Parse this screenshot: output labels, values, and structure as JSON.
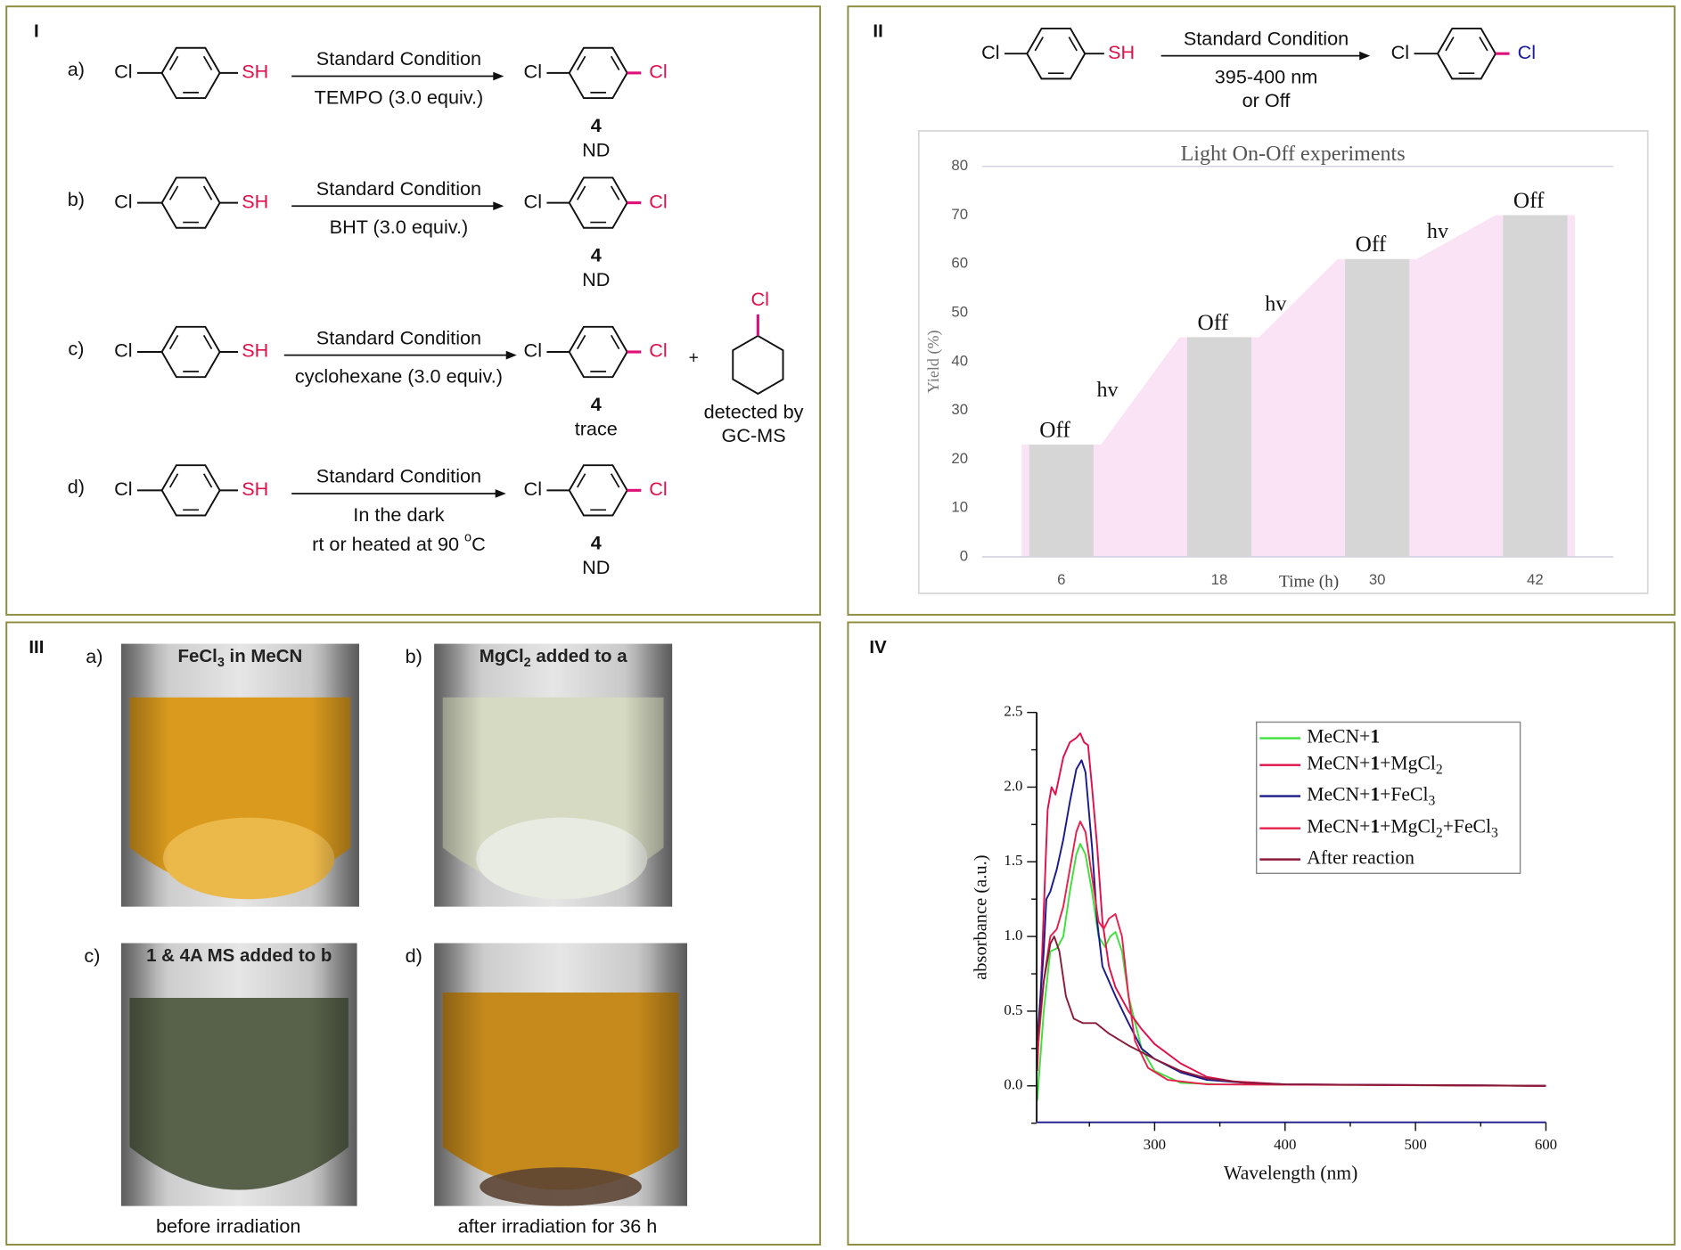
{
  "colors": {
    "panel_border": "#8c8c3c",
    "thiol_red": "#e0104a",
    "product_bond": "#e0107a",
    "product_cl_II": "#1a1a9c",
    "bar_grey": "#d6d6d6",
    "light_pink": "#fbe3f6"
  },
  "panel_I": {
    "label": "I",
    "rows": [
      {
        "letter": "a)",
        "reactant_left": "Cl",
        "reactant_right": "SH",
        "above": "Standard Condition",
        "below": "TEMPO (3.0 equiv.)",
        "product_left": "Cl",
        "product_right": "Cl",
        "compound": "4",
        "result": "ND"
      },
      {
        "letter": "b)",
        "reactant_left": "Cl",
        "reactant_right": "SH",
        "above": "Standard Condition",
        "below": "BHT (3.0 equiv.)",
        "product_left": "Cl",
        "product_right": "Cl",
        "compound": "4",
        "result": "ND"
      },
      {
        "letter": "c)",
        "reactant_left": "Cl",
        "reactant_right": "SH",
        "above": "Standard Condition",
        "below": "cyclohexane (3.0 equiv.)",
        "product_left": "Cl",
        "product_right": "Cl",
        "compound": "4",
        "result": "trace",
        "plus": "+",
        "byproduct_substituent": "Cl",
        "note_line1": "detected by",
        "note_line2": "GC-MS"
      },
      {
        "letter": "d)",
        "reactant_left": "Cl",
        "reactant_right": "SH",
        "above": "Standard Condition",
        "below": "In the dark",
        "below2_pre": "rt or heated at 90 ",
        "below2_sup": "o",
        "below2_post": "C",
        "product_left": "Cl",
        "product_right": "Cl",
        "compound": "4",
        "result": "ND"
      }
    ]
  },
  "panel_II": {
    "label": "II",
    "scheme": {
      "reactant_left": "Cl",
      "reactant_right": "SH",
      "above": "Standard Condition",
      "below1": "395-400 nm",
      "below2": "or Off",
      "product_left": "Cl",
      "product_right": "Cl"
    }
  },
  "panel_III": {
    "label": "III",
    "photos": [
      {
        "letter": "a)",
        "title_pre": "FeCl",
        "title_sub": "3",
        "title_post": " in MeCN",
        "liquid": "#d99a1e"
      },
      {
        "letter": "b)",
        "title_pre": "MgCl",
        "title_sub": "2",
        "title_post": " added to a",
        "liquid": "#d6dac2"
      },
      {
        "letter": "c)",
        "title_pre": "1 & 4A MS added to b",
        "title_sub": "",
        "title_post": "",
        "liquid": "#58624a"
      },
      {
        "letter": "d)",
        "title_pre": "",
        "title_sub": "",
        "title_post": "",
        "liquid": "#c68a1c"
      }
    ],
    "caption_left": "before irradiation",
    "caption_right": "after irradiation for 36 h"
  },
  "panel_IV": {
    "label": "IV"
  },
  "chart_data": [
    {
      "type": "bar",
      "title": "Light On-Off experiments",
      "xlabel": "Time (h)",
      "ylabel": "Yield (%)",
      "categories": [
        "6",
        "18",
        "30",
        "42"
      ],
      "values": [
        23,
        45,
        61,
        70
      ],
      "bar_labels": [
        "Off",
        "Off",
        "Off",
        "Off"
      ],
      "interval_labels": [
        "hv",
        "hv",
        "hv"
      ],
      "ylim": [
        0,
        80
      ],
      "yticks": [
        "0",
        "10",
        "20",
        "30",
        "40",
        "50",
        "60",
        "70",
        "80"
      ],
      "background_area": "light-on yield profile (pink)",
      "grid": false
    },
    {
      "type": "line",
      "xlabel": "Wavelength (nm)",
      "ylabel": "absorbance (a.u.)",
      "xlim": [
        210,
        600
      ],
      "ylim": [
        -0.25,
        2.5
      ],
      "xticks": [
        "300",
        "400",
        "500",
        "600"
      ],
      "yticks": [
        "0.0",
        "0.5",
        "1.0",
        "1.5",
        "2.0",
        "2.5"
      ],
      "legend_position": "top-right",
      "grid": false,
      "series": [
        {
          "name_parts": [
            {
              "t": "MeCN+"
            },
            {
              "t": "1",
              "b": true
            }
          ],
          "color": "#3ee03e",
          "x": [
            210,
            215,
            220,
            225,
            230,
            235,
            240,
            243,
            247,
            252,
            257,
            262,
            266,
            270,
            275,
            280,
            290,
            300,
            320,
            350,
            600
          ],
          "y": [
            -0.1,
            0.5,
            0.9,
            0.92,
            1.0,
            1.3,
            1.55,
            1.62,
            1.55,
            1.3,
            1.0,
            0.93,
            1.0,
            1.03,
            0.9,
            0.6,
            0.25,
            0.1,
            0.02,
            0.01,
            0.0
          ]
        },
        {
          "name_parts": [
            {
              "t": "MeCN+"
            },
            {
              "t": "1",
              "b": true
            },
            {
              "t": "+MgCl"
            },
            {
              "t": "2",
              "sub": true
            }
          ],
          "color": "#e0104a",
          "x": [
            210,
            213,
            216,
            218,
            221,
            224,
            230,
            235,
            240,
            243,
            246,
            249,
            252,
            256,
            260,
            265,
            270,
            280,
            290,
            300,
            320,
            340,
            360,
            400,
            600
          ],
          "y": [
            0.1,
            0.7,
            1.4,
            1.85,
            2.0,
            1.95,
            2.2,
            2.3,
            2.33,
            2.36,
            2.3,
            2.28,
            2.0,
            1.6,
            1.1,
            0.8,
            0.66,
            0.5,
            0.38,
            0.28,
            0.15,
            0.06,
            0.03,
            0.01,
            0.0
          ]
        },
        {
          "name_parts": [
            {
              "t": "MeCN+"
            },
            {
              "t": "1",
              "b": true
            },
            {
              "t": "+FeCl"
            },
            {
              "t": "3",
              "sub": true
            }
          ],
          "color": "#1a1a8c",
          "x": [
            210,
            215,
            217,
            220,
            225,
            230,
            235,
            240,
            244,
            247,
            252,
            256,
            260,
            270,
            280,
            290,
            300,
            320,
            340,
            370,
            400,
            600
          ],
          "y": [
            0.3,
            0.9,
            1.25,
            1.3,
            1.45,
            1.65,
            1.9,
            2.12,
            2.18,
            2.1,
            1.6,
            1.1,
            0.8,
            0.6,
            0.42,
            0.25,
            0.18,
            0.09,
            0.04,
            0.02,
            0.01,
            0.0
          ]
        },
        {
          "name_parts": [
            {
              "t": "MeCN+"
            },
            {
              "t": "1",
              "b": true
            },
            {
              "t": "+MgCl"
            },
            {
              "t": "2",
              "sub": true
            },
            {
              "t": "+FeCl"
            },
            {
              "t": "3",
              "sub": true
            }
          ],
          "color": "#e8204e",
          "x": [
            210,
            215,
            220,
            225,
            230,
            235,
            240,
            243,
            247,
            252,
            257,
            261,
            265,
            270,
            275,
            280,
            285,
            295,
            310,
            340,
            600
          ],
          "y": [
            0.2,
            0.7,
            1.0,
            1.05,
            1.2,
            1.45,
            1.7,
            1.77,
            1.7,
            1.4,
            1.1,
            1.05,
            1.12,
            1.15,
            1.0,
            0.6,
            0.3,
            0.12,
            0.04,
            0.01,
            0.0
          ]
        },
        {
          "name_parts": [
            {
              "t": "After reaction"
            }
          ],
          "color": "#8b1a3a",
          "x": [
            210,
            215,
            220,
            223,
            227,
            232,
            238,
            245,
            255,
            265,
            280,
            300,
            320,
            340,
            370,
            400,
            600
          ],
          "y": [
            0.3,
            0.7,
            0.95,
            1.0,
            0.9,
            0.6,
            0.45,
            0.42,
            0.42,
            0.35,
            0.27,
            0.18,
            0.1,
            0.05,
            0.02,
            0.01,
            0.0
          ]
        }
      ]
    }
  ]
}
